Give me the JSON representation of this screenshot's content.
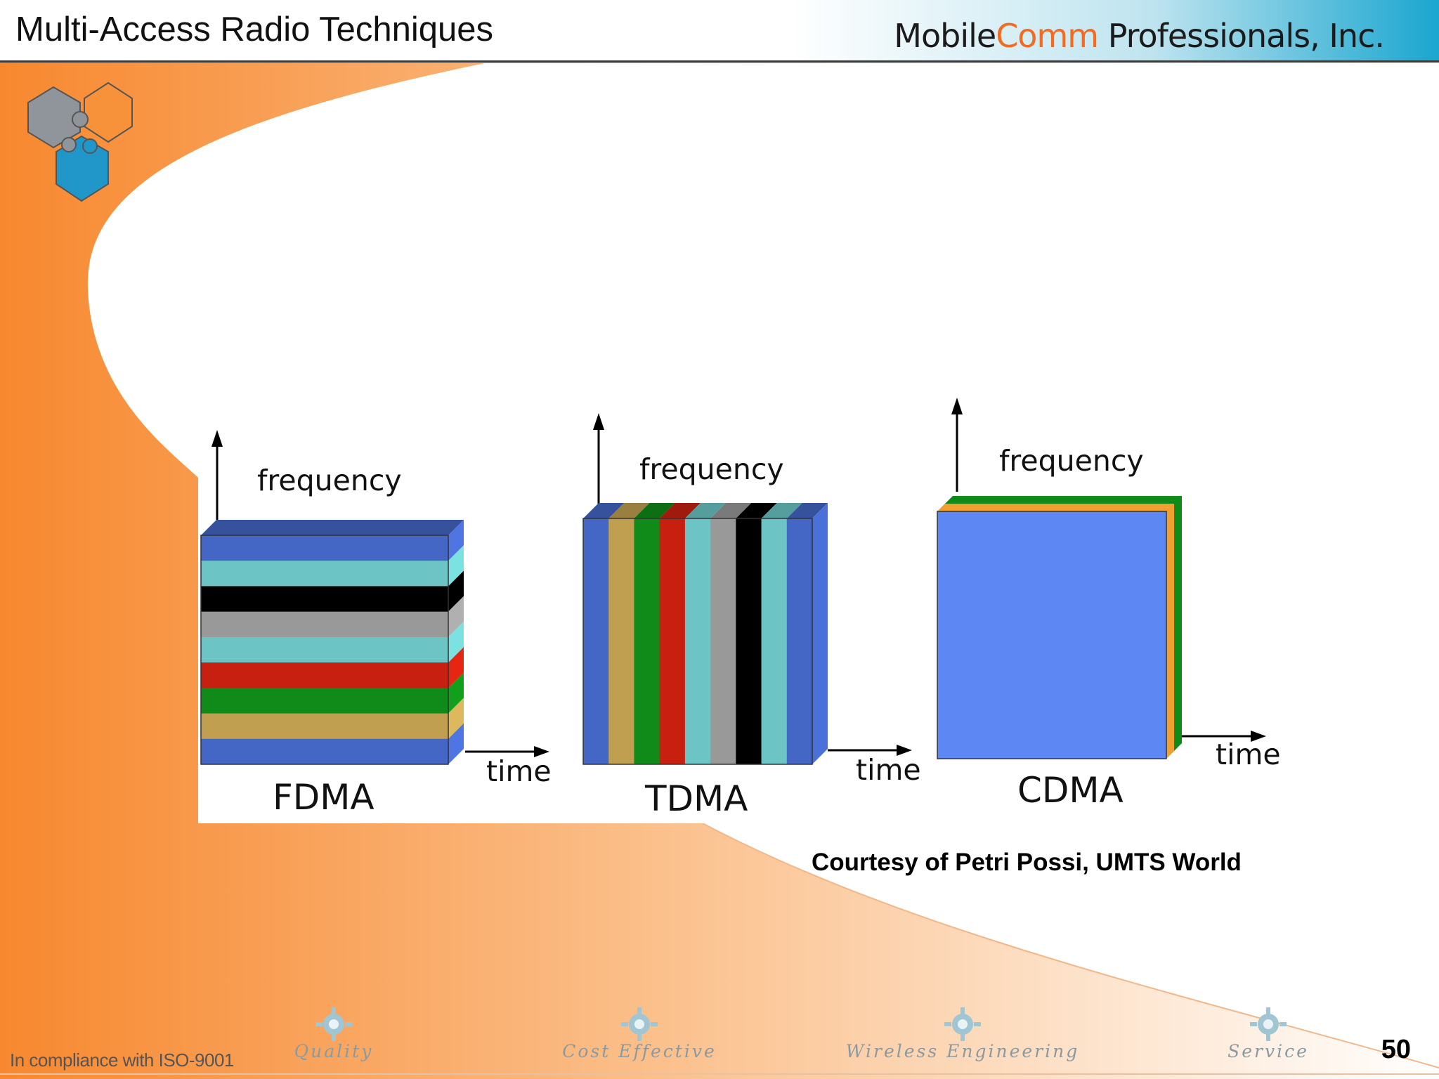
{
  "slide": {
    "title": "Multi-Access Radio Techniques",
    "company_part1": "Mobile",
    "company_part2": "Comm",
    "company_part3": " Professionals, Inc.",
    "page_number": "50"
  },
  "diagram": {
    "panels": [
      {
        "id": "fdma",
        "frequency_label": "frequency",
        "time_label": "time",
        "name": "FDMA"
      },
      {
        "id": "tdma",
        "frequency_label": "frequency",
        "time_label": "time",
        "name": "TDMA"
      },
      {
        "id": "cdma",
        "frequency_label": "frequency",
        "time_label": "time",
        "name": "CDMA"
      }
    ],
    "fdma_band_colors": [
      "#4466c4",
      "#6cc4c4",
      "#000000",
      "#999999",
      "#6cc4c4",
      "#c82010",
      "#108a18",
      "#c0a050",
      "#4466c4"
    ],
    "tdma_slot_colors": [
      "#4466c4",
      "#c0a050",
      "#108a18",
      "#c82010",
      "#6cc4c4",
      "#999999",
      "#000000",
      "#6cc4c4",
      "#4466c4"
    ],
    "cdma_colors": {
      "front": "#5d88f4",
      "layer_orange": "#f0a030",
      "layer_green": "#108a18"
    }
  },
  "courtesy": "Courtesy of Petri Possi, UMTS World",
  "footer": {
    "compliance": "In compliance with ISO-9001",
    "items": [
      "Quality",
      "Cost Effective",
      "Wireless Engineering",
      "Service"
    ]
  },
  "colors": {
    "brand_orange": "#f7882f",
    "header_blue": "#1aa6cf",
    "logo_gray": "#8f959a",
    "logo_orange": "#f7923a",
    "logo_blue": "#2196c8"
  }
}
